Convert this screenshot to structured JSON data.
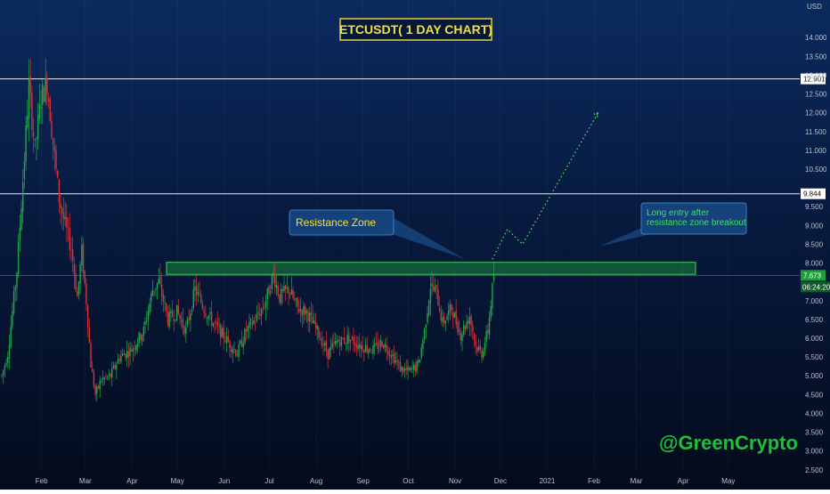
{
  "chart_data": {
    "type": "candlestick",
    "title": "ETCUSDT( 1 DAY CHART)",
    "ylabel": "USD",
    "ylim": [
      2.4,
      15.0
    ],
    "y_ticks": [
      "14.000",
      "13.500",
      "13.000",
      "12.500",
      "12.000",
      "11.500",
      "11.000",
      "10.500",
      "9.500",
      "9.000",
      "8.500",
      "8.000",
      "7.000",
      "6.500",
      "6.000",
      "5.500",
      "5.000",
      "4.500",
      "4.000",
      "3.500",
      "3.000",
      "2.500"
    ],
    "x_ticks": [
      "Feb",
      "Mar",
      "Apr",
      "May",
      "Jun",
      "Jul",
      "Aug",
      "Sep",
      "Oct",
      "Nov",
      "Dec",
      "2021",
      "Feb",
      "Mar",
      "Apr",
      "May"
    ],
    "price_levels": [
      {
        "label": "12.901",
        "value": 12.901
      },
      {
        "label": "9.844",
        "value": 9.844
      }
    ],
    "current_price": {
      "label": "7.673",
      "value": 7.673,
      "countdown": "06:24:20"
    },
    "resistance_zone": {
      "low": 7.7,
      "high": 8.02
    },
    "annotations": {
      "resistance": "Resistance Zone",
      "entry": "Long entry after\nresistance zone breakout"
    },
    "projection_path": [
      {
        "index": 325,
        "price": 8.1
      },
      {
        "index": 335,
        "price": 8.9
      },
      {
        "index": 345,
        "price": 8.5
      },
      {
        "index": 395,
        "price": 12.0
      }
    ],
    "candles_keypoints": [
      [
        0,
        5.0
      ],
      [
        4,
        5.6
      ],
      [
        10,
        7.8
      ],
      [
        14,
        10.2
      ],
      [
        18,
        12.7
      ],
      [
        22,
        11.0
      ],
      [
        26,
        12.4
      ],
      [
        30,
        12.8
      ],
      [
        34,
        11.2
      ],
      [
        38,
        9.7
      ],
      [
        42,
        9.0
      ],
      [
        46,
        8.4
      ],
      [
        50,
        7.1
      ],
      [
        53,
        8.3
      ],
      [
        56,
        7.0
      ],
      [
        59,
        5.3
      ],
      [
        62,
        4.5
      ],
      [
        66,
        4.9
      ],
      [
        72,
        5.0
      ],
      [
        78,
        5.5
      ],
      [
        86,
        5.7
      ],
      [
        94,
        6.2
      ],
      [
        100,
        7.3
      ],
      [
        104,
        7.5
      ],
      [
        110,
        6.5
      ],
      [
        116,
        6.7
      ],
      [
        122,
        6.2
      ],
      [
        128,
        7.3
      ],
      [
        134,
        6.8
      ],
      [
        140,
        6.4
      ],
      [
        148,
        6.0
      ],
      [
        156,
        5.6
      ],
      [
        162,
        6.2
      ],
      [
        168,
        6.5
      ],
      [
        174,
        6.9
      ],
      [
        180,
        7.7
      ],
      [
        184,
        7.1
      ],
      [
        190,
        7.3
      ],
      [
        196,
        6.8
      ],
      [
        202,
        6.7
      ],
      [
        210,
        6.1
      ],
      [
        216,
        5.6
      ],
      [
        222,
        5.9
      ],
      [
        230,
        6.0
      ],
      [
        238,
        5.8
      ],
      [
        246,
        5.7
      ],
      [
        252,
        5.9
      ],
      [
        258,
        5.6
      ],
      [
        264,
        5.2
      ],
      [
        270,
        5.1
      ],
      [
        276,
        5.3
      ],
      [
        280,
        6.2
      ],
      [
        284,
        7.4
      ],
      [
        288,
        7.2
      ],
      [
        292,
        6.4
      ],
      [
        298,
        6.8
      ],
      [
        304,
        6.1
      ],
      [
        310,
        6.6
      ],
      [
        314,
        5.8
      ],
      [
        318,
        5.6
      ],
      [
        322,
        6.2
      ],
      [
        326,
        7.673
      ]
    ]
  },
  "watermark": "@GreenCrypto",
  "colors": {
    "up": "#22a84a",
    "down": "#d8323a",
    "zone": "#1f9d3a",
    "title_border": "#e0d13a",
    "title_text": "#f0e040",
    "callout_bg": "#16457d",
    "callout_border": "#3c84c8",
    "entry_text": "#40e060",
    "resistance_text": "#f0e040",
    "watermark": "#1fbf3a",
    "current_price": "#1f9d3a"
  }
}
